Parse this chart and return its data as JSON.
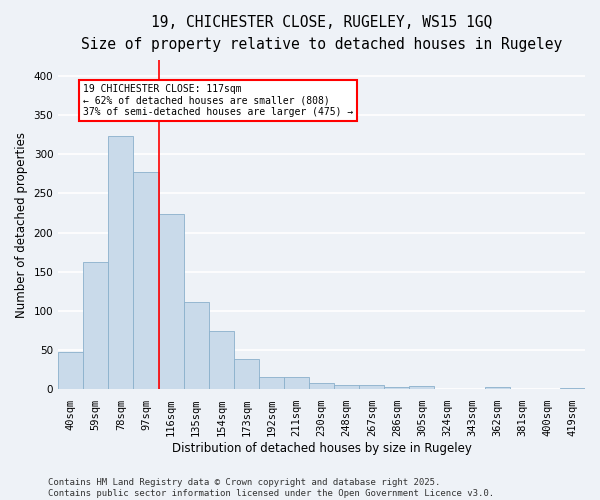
{
  "title_line1": "19, CHICHESTER CLOSE, RUGELEY, WS15 1GQ",
  "title_line2": "Size of property relative to detached houses in Rugeley",
  "xlabel": "Distribution of detached houses by size in Rugeley",
  "ylabel": "Number of detached properties",
  "categories": [
    "40sqm",
    "59sqm",
    "78sqm",
    "97sqm",
    "116sqm",
    "135sqm",
    "154sqm",
    "173sqm",
    "192sqm",
    "211sqm",
    "230sqm",
    "248sqm",
    "267sqm",
    "286sqm",
    "305sqm",
    "324sqm",
    "343sqm",
    "362sqm",
    "381sqm",
    "400sqm",
    "419sqm"
  ],
  "values": [
    48,
    163,
    323,
    278,
    224,
    112,
    74,
    39,
    15,
    15,
    8,
    5,
    6,
    3,
    4,
    0,
    0,
    3,
    0,
    0,
    2
  ],
  "bar_color": "#c9daea",
  "bar_edge_color": "#8ab0cc",
  "redline_x": 3.5,
  "annotation_line1": "19 CHICHESTER CLOSE: 117sqm",
  "annotation_line2": "← 62% of detached houses are smaller (808)",
  "annotation_line3": "37% of semi-detached houses are larger (475) →",
  "annotation_box_color": "white",
  "annotation_box_edge": "red",
  "ylim": [
    0,
    420
  ],
  "yticks": [
    0,
    50,
    100,
    150,
    200,
    250,
    300,
    350,
    400
  ],
  "footnote_line1": "Contains HM Land Registry data © Crown copyright and database right 2025.",
  "footnote_line2": "Contains public sector information licensed under the Open Government Licence v3.0.",
  "bg_color": "#eef2f7",
  "grid_color": "#ffffff",
  "title_fontsize": 10.5,
  "subtitle_fontsize": 9.5,
  "axis_label_fontsize": 8.5,
  "tick_fontsize": 7.5,
  "annotation_fontsize": 7,
  "footnote_fontsize": 6.5
}
